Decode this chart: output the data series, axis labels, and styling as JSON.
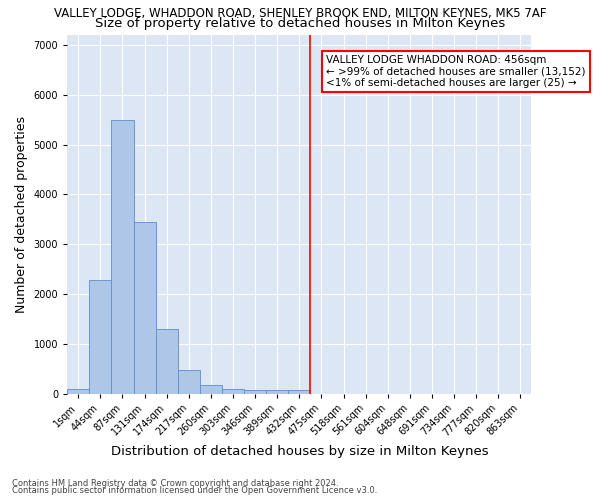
{
  "title_line1": "VALLEY LODGE, WHADDON ROAD, SHENLEY BROOK END, MILTON KEYNES, MK5 7AF",
  "title_line2": "Size of property relative to detached houses in Milton Keynes",
  "xlabel": "Distribution of detached houses by size in Milton Keynes",
  "ylabel": "Number of detached properties",
  "footer_line1": "Contains HM Land Registry data © Crown copyright and database right 2024.",
  "footer_line2": "Contains public sector information licensed under the Open Government Licence v3.0.",
  "bin_labels": [
    "1sqm",
    "44sqm",
    "87sqm",
    "131sqm",
    "174sqm",
    "217sqm",
    "260sqm",
    "303sqm",
    "346sqm",
    "389sqm",
    "432sqm",
    "475sqm",
    "518sqm",
    "561sqm",
    "604sqm",
    "648sqm",
    "691sqm",
    "734sqm",
    "777sqm",
    "820sqm",
    "863sqm"
  ],
  "bar_values": [
    100,
    2280,
    5500,
    3450,
    1300,
    480,
    165,
    90,
    80,
    65,
    65,
    0,
    0,
    0,
    0,
    0,
    0,
    0,
    0,
    0,
    0
  ],
  "bar_color": "#aec6e8",
  "bar_edge_color": "#5b8fc9",
  "red_line_x": 10.5,
  "legend_title": "VALLEY LODGE WHADDON ROAD: 456sqm",
  "legend_line1": "← >99% of detached houses are smaller (13,152)",
  "legend_line2": "<1% of semi-detached houses are larger (25) →",
  "legend_box_color": "white",
  "legend_box_edge_color": "red",
  "ylim": [
    0,
    7200
  ],
  "yticks": [
    0,
    1000,
    2000,
    3000,
    4000,
    5000,
    6000,
    7000
  ],
  "background_color": "#dce6f5",
  "grid_color": "white",
  "title1_fontsize": 8.5,
  "title2_fontsize": 9.5,
  "axis_label_fontsize": 9,
  "tick_fontsize": 7,
  "legend_fontsize": 7.5,
  "footer_fontsize": 6
}
